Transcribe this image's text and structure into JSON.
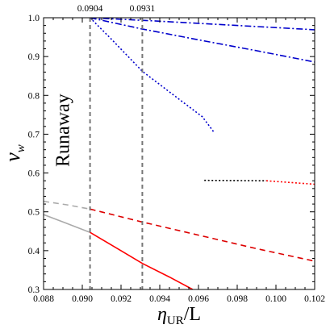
{
  "chart_data": {
    "type": "line",
    "xlabel": "η",
    "xlabel_sub": "UR",
    "xlabel_tail": "/L",
    "ylabel": "v",
    "ylabel_sub": "w",
    "xlim": [
      0.088,
      0.102
    ],
    "ylim": [
      0.3,
      1.0
    ],
    "xticks": [
      {
        "value": 0.088,
        "label": "0.088"
      },
      {
        "value": 0.09,
        "label": "0.090"
      },
      {
        "value": 0.092,
        "label": "0.092"
      },
      {
        "value": 0.094,
        "label": "0.094"
      },
      {
        "value": 0.096,
        "label": "0.096"
      },
      {
        "value": 0.098,
        "label": "0.098"
      },
      {
        "value": 0.1,
        "label": "0.100"
      },
      {
        "value": 0.102,
        "label": "0.102"
      }
    ],
    "yticks": [
      {
        "value": 0.3,
        "label": "0.3"
      },
      {
        "value": 0.4,
        "label": "0.4"
      },
      {
        "value": 0.5,
        "label": "0.5"
      },
      {
        "value": 0.6,
        "label": "0.6"
      },
      {
        "value": 0.7,
        "label": "0.7"
      },
      {
        "value": 0.8,
        "label": "0.8"
      },
      {
        "value": 0.9,
        "label": "0.9"
      },
      {
        "value": 1.0,
        "label": "1.0"
      }
    ],
    "vlines": [
      {
        "x": 0.0904,
        "label": "0.0904",
        "color": "#777777"
      },
      {
        "x": 0.0931,
        "label": "0.0931",
        "color": "#777777"
      }
    ],
    "annotations": [
      {
        "text": "Runaway",
        "x": 0.0889,
        "y": 0.71,
        "rotate": -90
      }
    ],
    "series": [
      {
        "color": "#0000cc",
        "style": "dashdot",
        "x": [
          0.0904,
          0.094,
          0.098,
          0.102
        ],
        "y": [
          1.0,
          0.991,
          0.98,
          0.969
        ]
      },
      {
        "color": "#0000cc",
        "style": "dashdot",
        "x": [
          0.0904,
          0.093,
          0.096,
          0.099,
          0.102
        ],
        "y": [
          1.0,
          0.972,
          0.943,
          0.915,
          0.886
        ]
      },
      {
        "color": "#0000cc",
        "style": "dotted",
        "x": [
          0.0904,
          0.0915,
          0.0931,
          0.095,
          0.0962,
          0.0968
        ],
        "y": [
          1.0,
          0.945,
          0.862,
          0.79,
          0.745,
          0.705
        ]
      },
      {
        "color": "#000000",
        "style": "dotted",
        "x": [
          0.0963,
          0.0995
        ],
        "y": [
          0.581,
          0.58
        ]
      },
      {
        "color": "#ff0000",
        "style": "dotted",
        "x": [
          0.0995,
          0.102
        ],
        "y": [
          0.58,
          0.571
        ]
      },
      {
        "color": "#aaaaaa",
        "style": "dashed",
        "x": [
          0.088,
          0.0892,
          0.0904
        ],
        "y": [
          0.527,
          0.518,
          0.507
        ]
      },
      {
        "color": "#dd0000",
        "style": "dashed",
        "x": [
          0.0904,
          0.093,
          0.096,
          0.099,
          0.102
        ],
        "y": [
          0.507,
          0.475,
          0.44,
          0.405,
          0.373
        ]
      },
      {
        "color": "#aaaaaa",
        "style": "solid",
        "x": [
          0.088,
          0.089,
          0.0904
        ],
        "y": [
          0.493,
          0.474,
          0.447
        ]
      },
      {
        "color": "#ff0000",
        "style": "solid",
        "x": [
          0.0904,
          0.092,
          0.0931,
          0.0945,
          0.0957
        ],
        "y": [
          0.447,
          0.4,
          0.367,
          0.332,
          0.3
        ]
      }
    ]
  }
}
